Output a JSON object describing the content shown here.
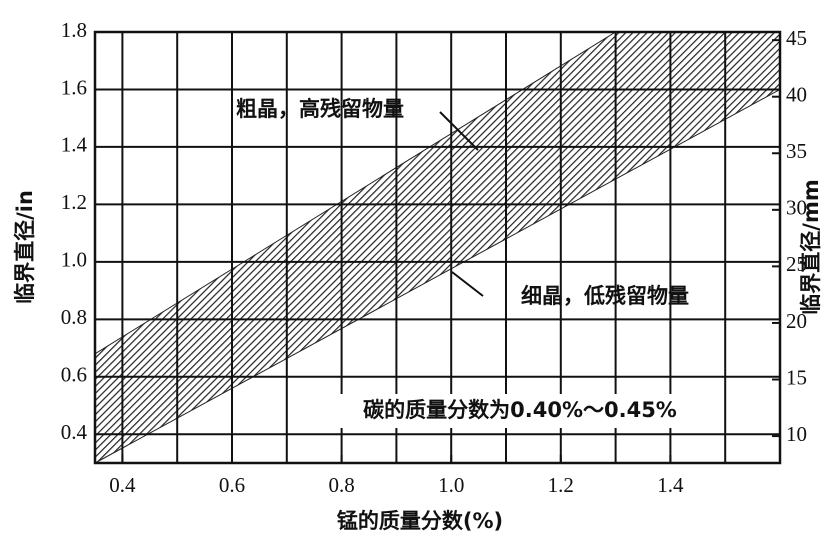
{
  "chart_data": {
    "type": "band",
    "xlabel": "锰的质量分数(%)",
    "ylabel": "临界直径/in",
    "y2label": "临界直径/mm",
    "xlim": [
      0.35,
      1.6
    ],
    "ylim": [
      0.3,
      1.8
    ],
    "y2lim": [
      7.62,
      45.72
    ],
    "xticks": [
      0.4,
      0.6,
      0.8,
      {
        "value": 1,
        "label": "1.0"
      },
      1.2,
      1.4
    ],
    "x_gridlines": [
      0.4,
      0.5,
      0.6,
      0.7,
      0.8,
      0.9,
      1,
      1.1,
      1.2,
      1.3,
      1.4,
      1.5
    ],
    "yticks": [
      0.4,
      0.6,
      0.8,
      {
        "value": 1,
        "label": "1.0"
      },
      1.2,
      1.4,
      1.6,
      1.8
    ],
    "y2ticks": [
      10,
      15,
      20,
      25,
      30,
      35,
      40,
      45
    ],
    "grid": true,
    "x": [
      0.35,
      1.3,
      1.6
    ],
    "series": [
      {
        "name": "粗晶，高残留物量",
        "color": "#222",
        "values": [
          0.68,
          1.8,
          1.8
        ]
      },
      {
        "name": "细晶，低残留物量",
        "color": "#222",
        "values": [
          0.3,
          1.288,
          1.6
        ]
      }
    ],
    "note": "碳的质量分数为0.40%～0.45%"
  }
}
